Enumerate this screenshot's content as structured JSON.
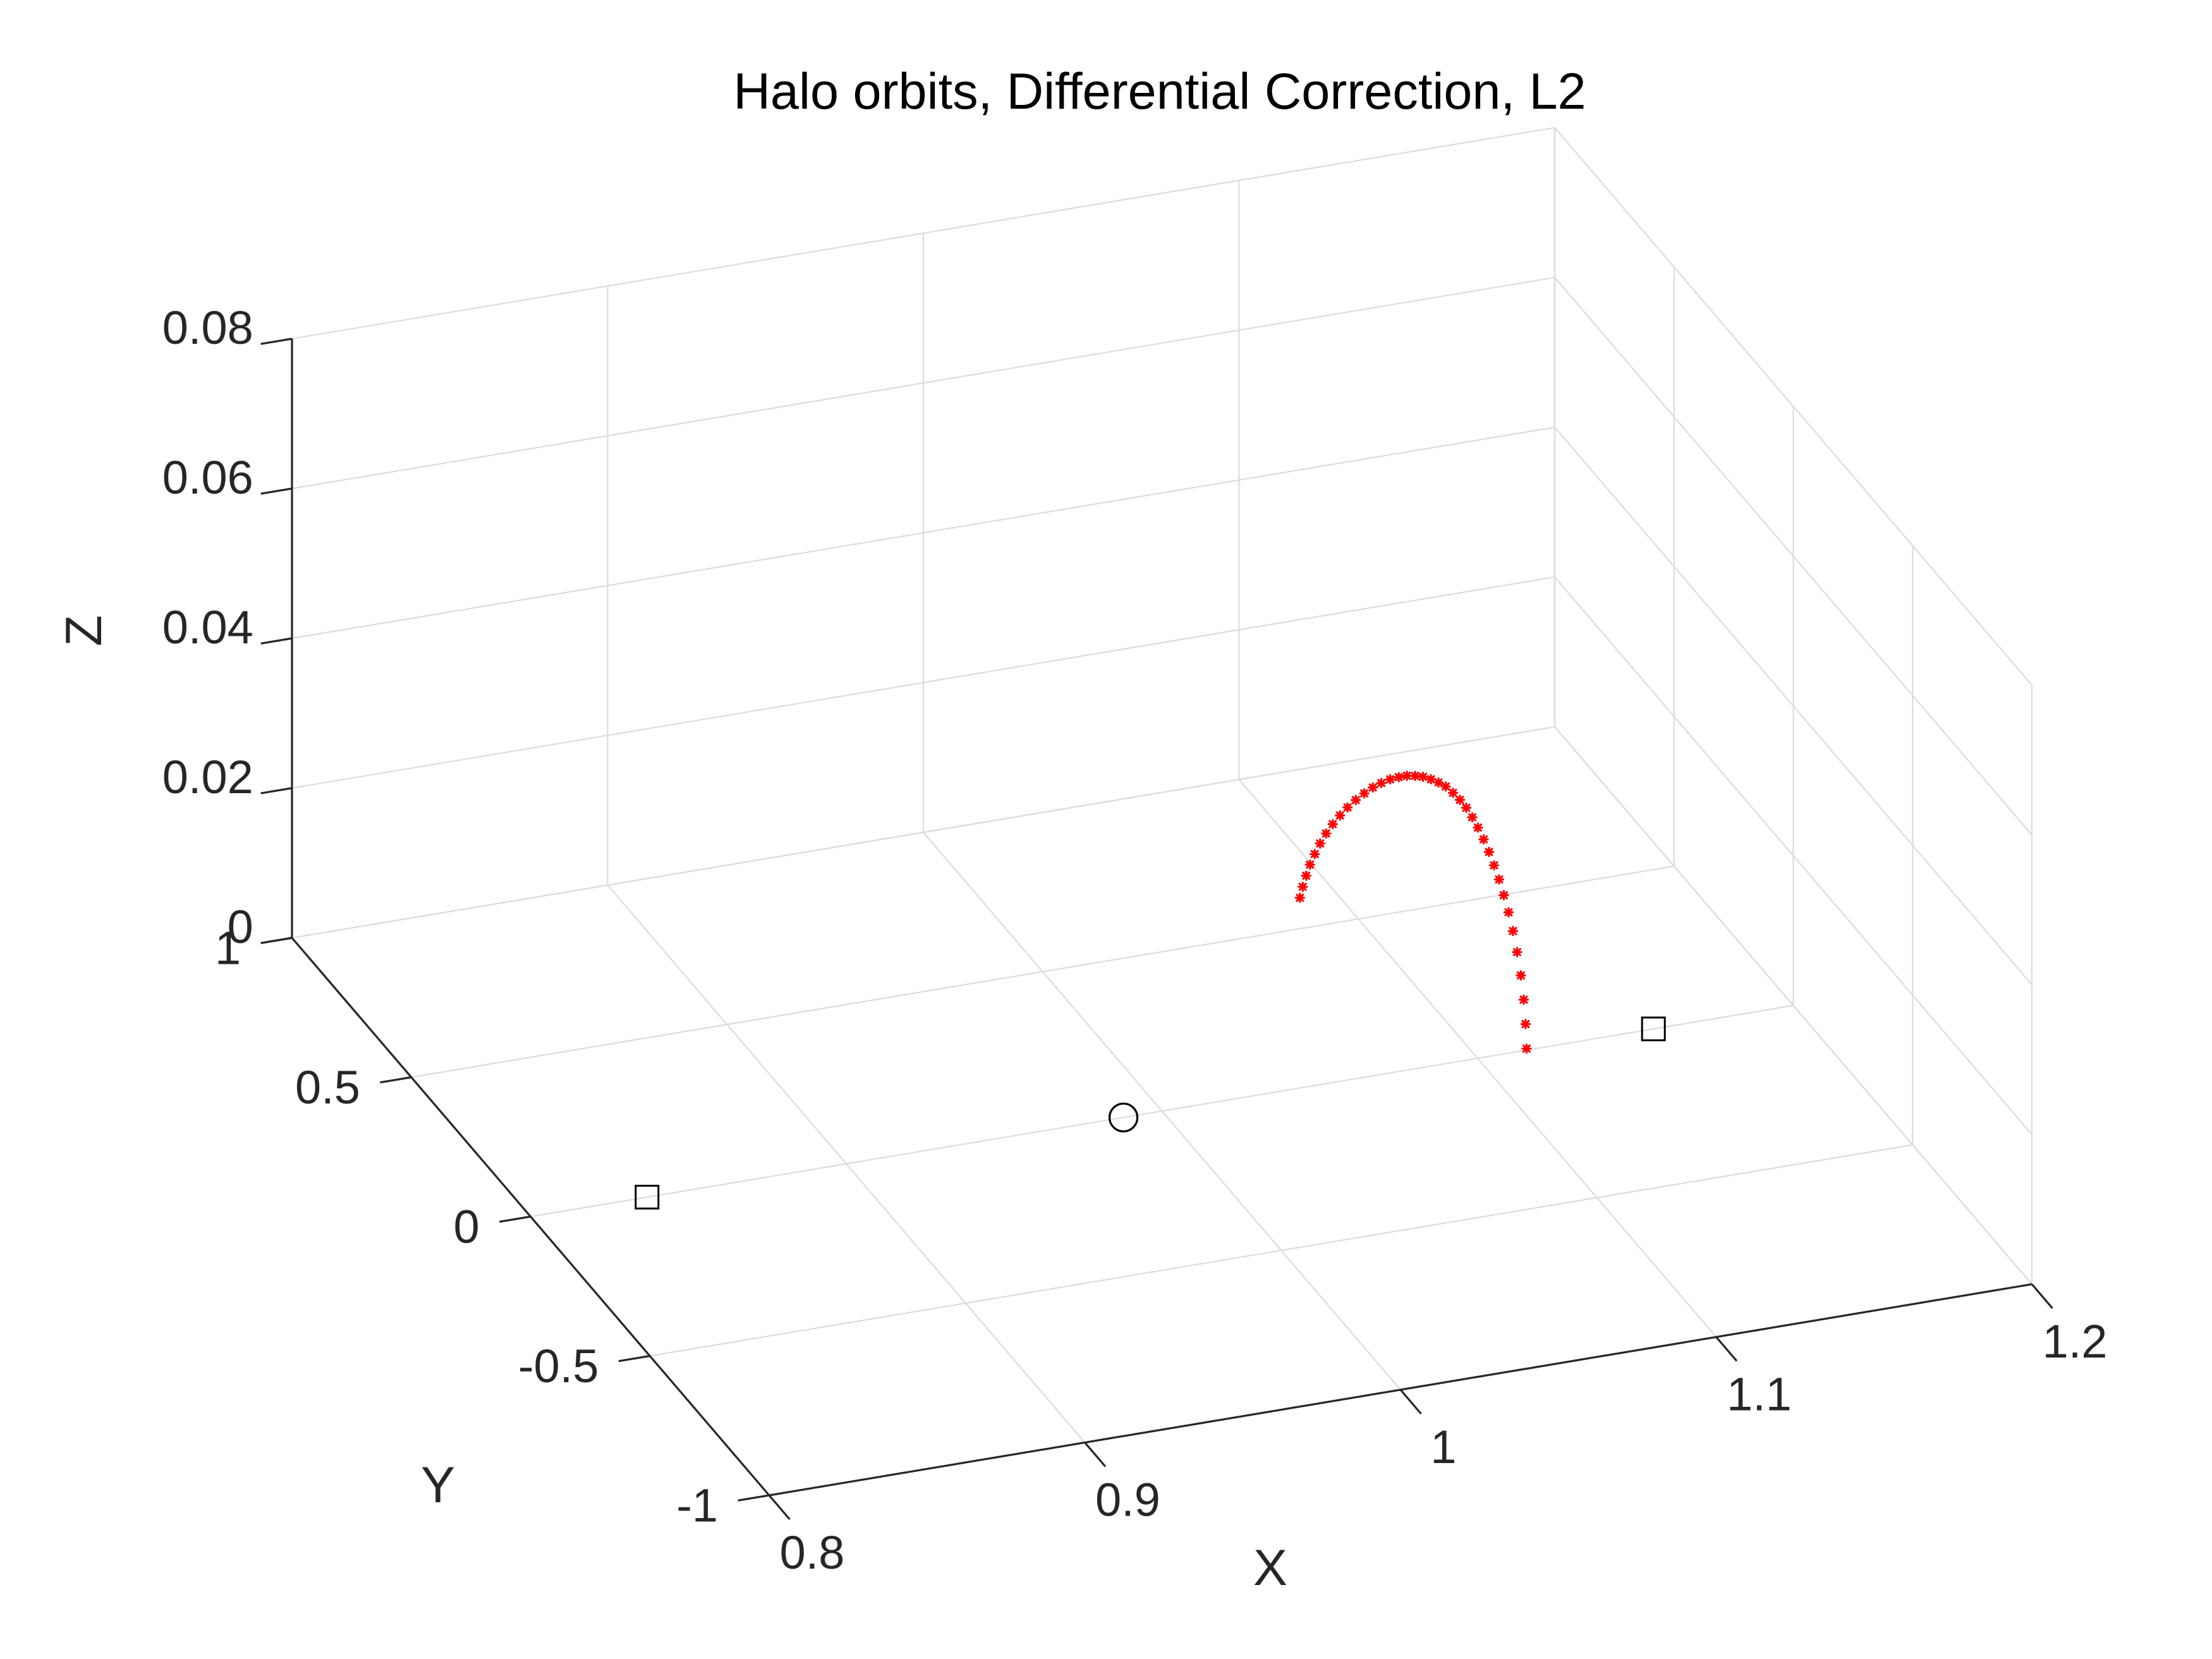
{
  "chart_data": {
    "type": "scatter",
    "title": "Halo orbits, Differential Correction, L2",
    "xlabel": "X",
    "ylabel": "Y",
    "zlabel": "Z",
    "xlim": [
      0.8,
      1.2
    ],
    "ylim": [
      -1,
      1
    ],
    "zlim": [
      0,
      0.08
    ],
    "xticks": [
      0.8,
      0.9,
      1,
      1.1,
      1.2
    ],
    "xtick_labels": [
      "0.8",
      "0.9",
      "1",
      "1.1",
      "1.2"
    ],
    "yticks": [
      -1,
      -0.5,
      0,
      0.5,
      1
    ],
    "ytick_labels": [
      "-1",
      "-0.5",
      "0",
      "0.5",
      "1"
    ],
    "zticks": [
      0,
      0.02,
      0.04,
      0.06,
      0.08
    ],
    "ztick_labels": [
      "0",
      "0.02",
      "0.04",
      "0.06",
      "0.08"
    ],
    "grid": true,
    "box": "3d",
    "colors": {
      "orbit": "#ff0000",
      "markers": "#000000",
      "grid": "#dcdcdc",
      "axes": "#262626"
    },
    "series": [
      {
        "marker": "asterisk",
        "color": "#ff0000",
        "points": [
          {
            "x": 1.1155,
            "y": 0,
            "z": 0.0002
          },
          {
            "x": 1.1152,
            "y": 0,
            "z": 0.0035
          },
          {
            "x": 1.1146,
            "y": 0,
            "z": 0.0068
          },
          {
            "x": 1.1137,
            "y": 0,
            "z": 0.0101
          },
          {
            "x": 1.1125,
            "y": 0,
            "z": 0.0133
          },
          {
            "x": 1.1112,
            "y": 0,
            "z": 0.0162
          },
          {
            "x": 1.1098,
            "y": 0,
            "z": 0.0188
          },
          {
            "x": 1.1083,
            "y": 0,
            "z": 0.0212
          },
          {
            "x": 1.1068,
            "y": 0,
            "z": 0.0234
          },
          {
            "x": 1.1052,
            "y": 0,
            "z": 0.0254
          },
          {
            "x": 1.1036,
            "y": 0,
            "z": 0.0273
          },
          {
            "x": 1.1019,
            "y": 0,
            "z": 0.0291
          },
          {
            "x": 1.1001,
            "y": 0,
            "z": 0.0308
          },
          {
            "x": 1.0983,
            "y": 0,
            "z": 0.0323
          },
          {
            "x": 1.0964,
            "y": 0,
            "z": 0.0337
          },
          {
            "x": 1.0944,
            "y": 0,
            "z": 0.0349
          },
          {
            "x": 1.0922,
            "y": 0,
            "z": 0.036
          },
          {
            "x": 1.0899,
            "y": 0,
            "z": 0.037
          },
          {
            "x": 1.0876,
            "y": 0,
            "z": 0.0377
          },
          {
            "x": 1.0852,
            "y": 0,
            "z": 0.0383
          },
          {
            "x": 1.0827,
            "y": 0,
            "z": 0.0388
          },
          {
            "x": 1.0802,
            "y": 0,
            "z": 0.0391
          },
          {
            "x": 1.0776,
            "y": 0,
            "z": 0.0393
          },
          {
            "x": 1.075,
            "y": 0,
            "z": 0.0393
          },
          {
            "x": 1.0723,
            "y": 0,
            "z": 0.0392
          },
          {
            "x": 1.0695,
            "y": 0,
            "z": 0.0389
          },
          {
            "x": 1.0668,
            "y": 0,
            "z": 0.0385
          },
          {
            "x": 1.0641,
            "y": 0,
            "z": 0.0379
          },
          {
            "x": 1.0614,
            "y": 0,
            "z": 0.0372
          },
          {
            "x": 1.0588,
            "y": 0,
            "z": 0.0364
          },
          {
            "x": 1.0564,
            "y": 0,
            "z": 0.0355
          },
          {
            "x": 1.0541,
            "y": 0,
            "z": 0.0345
          },
          {
            "x": 1.052,
            "y": 0,
            "z": 0.0334
          },
          {
            "x": 1.0501,
            "y": 0,
            "z": 0.0322
          },
          {
            "x": 1.0484,
            "y": 0,
            "z": 0.0309
          },
          {
            "x": 1.0469,
            "y": 0,
            "z": 0.0296
          },
          {
            "x": 1.0457,
            "y": 0,
            "z": 0.0282
          },
          {
            "x": 1.0446,
            "y": 0,
            "z": 0.0268
          },
          {
            "x": 1.0437,
            "y": 0,
            "z": 0.0254
          }
        ]
      },
      {
        "marker": "square",
        "color": "#000000",
        "points": [
          {
            "x": 0.8369,
            "y": 0,
            "z": 0
          },
          {
            "x": 1.1557,
            "y": 0,
            "z": 0
          }
        ]
      },
      {
        "marker": "circle",
        "color": "#000000",
        "points": [
          {
            "x": 0.9878,
            "y": 0,
            "z": 0
          }
        ]
      }
    ]
  }
}
